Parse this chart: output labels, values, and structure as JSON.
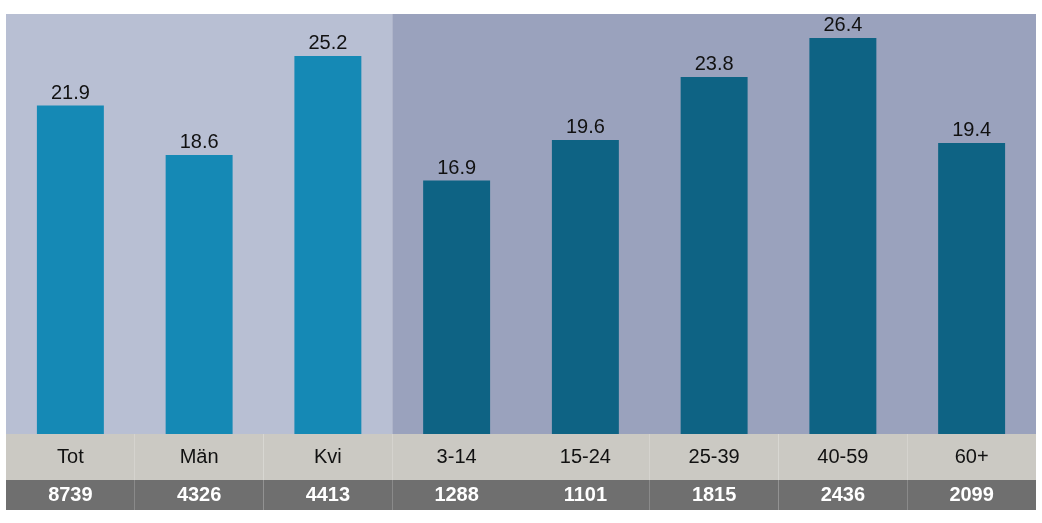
{
  "chart_data": {
    "type": "bar",
    "categories": [
      "Tot",
      "Män",
      "Kvi",
      "3-14",
      "15-24",
      "25-39",
      "40-59",
      "60+"
    ],
    "values": [
      21.9,
      18.6,
      25.2,
      16.9,
      19.6,
      23.8,
      26.4,
      19.4
    ],
    "colors": [
      "#1589b5",
      "#1589b5",
      "#1589b5",
      "#0e6384",
      "#0e6384",
      "#0e6384",
      "#0e6384",
      "#0e6384"
    ],
    "data_labels": true,
    "bands": [
      {
        "axis": "x",
        "from": "Tot",
        "to": "Kvi",
        "color": "#b8bfd3"
      },
      {
        "axis": "x",
        "from": "3-14",
        "to": "60+",
        "color": "#9aa2bd"
      }
    ],
    "annotations": [
      "8739",
      "4326",
      "4413",
      "1288",
      "1101",
      "1815",
      "2436",
      "2099"
    ]
  }
}
